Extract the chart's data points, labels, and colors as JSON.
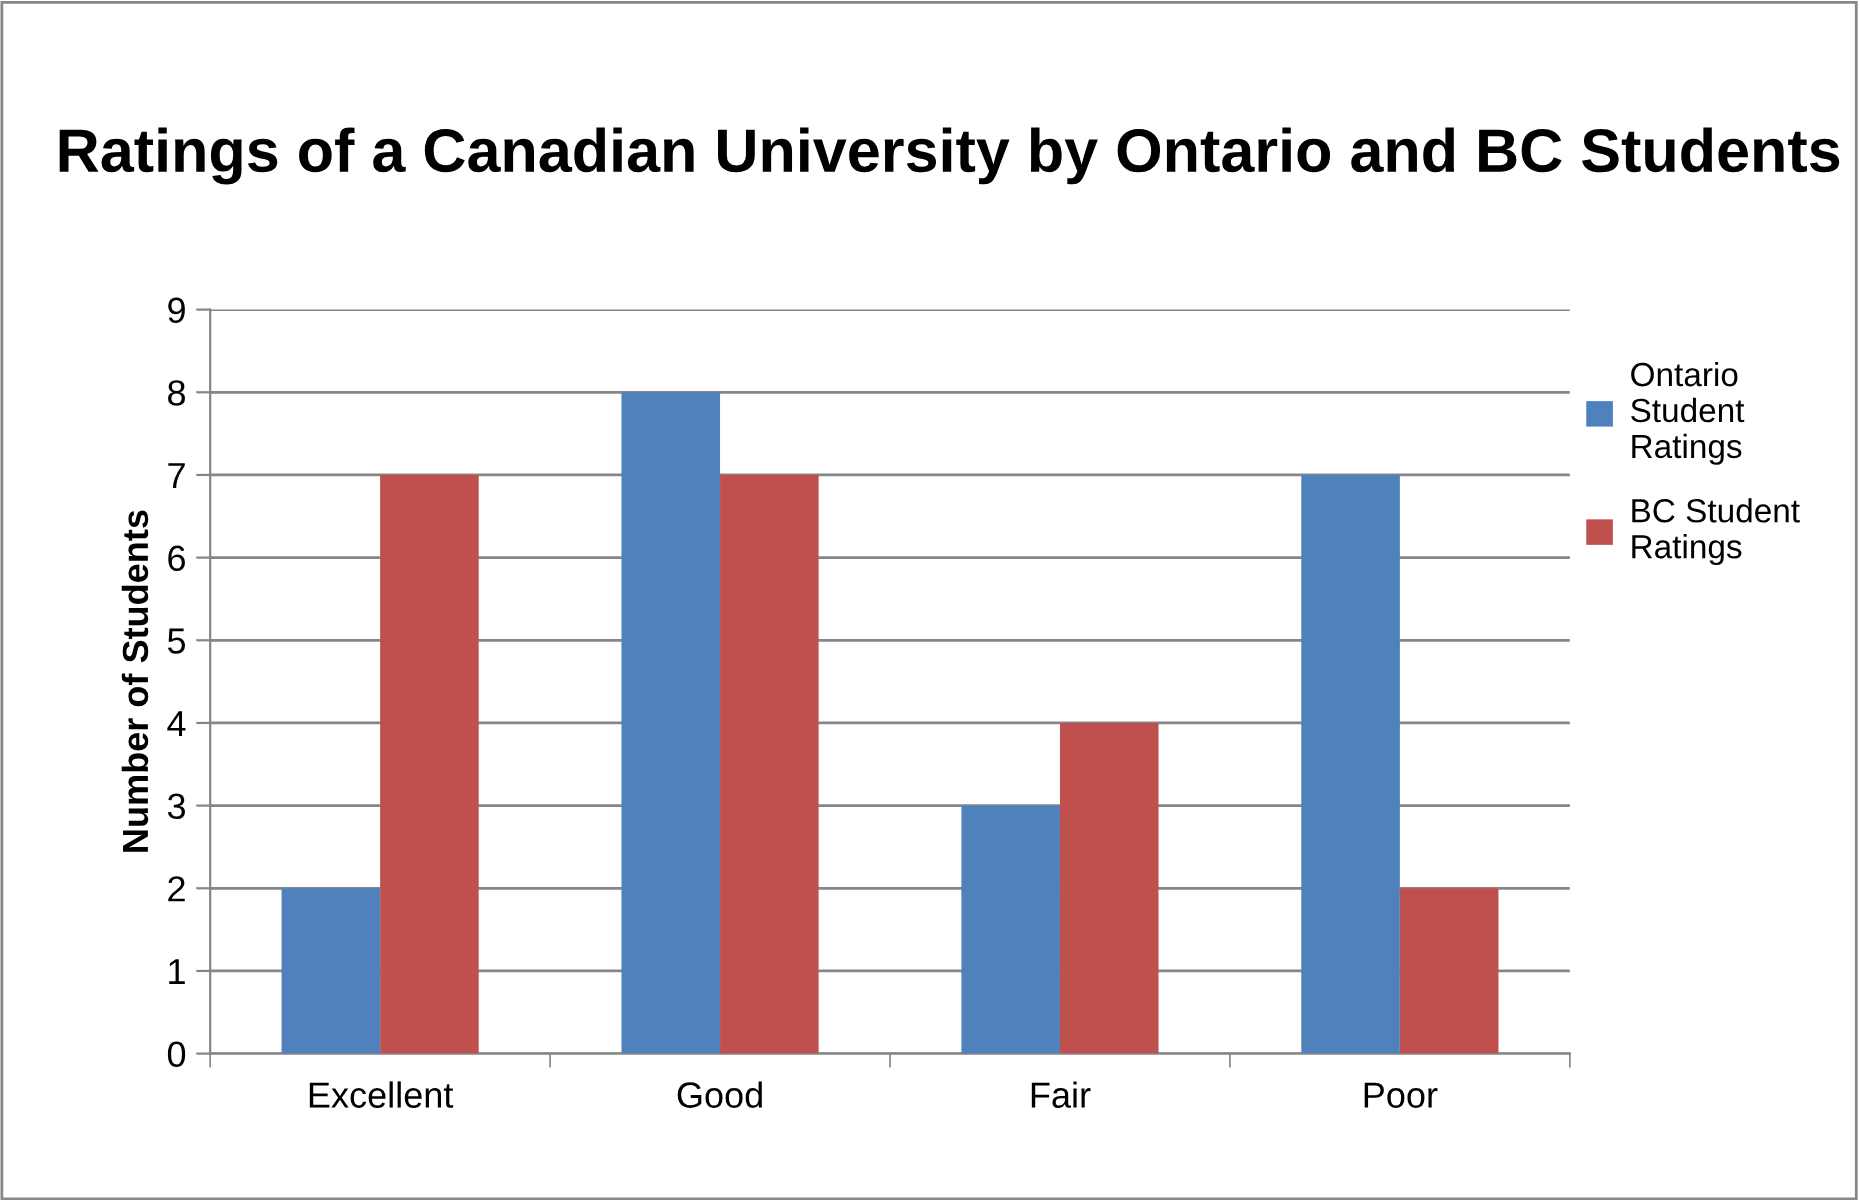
{
  "chart_data": {
    "type": "bar",
    "title": "Ratings of a Canadian University by Ontario and BC Students",
    "ylabel": "Number of Students",
    "categories": [
      "Excellent",
      "Good",
      "Fair",
      "Poor"
    ],
    "series": [
      {
        "name": "Ontario Student Ratings",
        "color": "#4f81bd",
        "values": [
          2,
          8,
          3,
          7
        ]
      },
      {
        "name": "BC Student Ratings",
        "color": "#c0504d",
        "values": [
          7,
          7,
          4,
          2
        ]
      }
    ],
    "ylim": [
      0,
      9
    ],
    "yticks": [
      0,
      1,
      2,
      3,
      4,
      5,
      6,
      7,
      8,
      9
    ],
    "grid": "y",
    "legend": "right"
  }
}
